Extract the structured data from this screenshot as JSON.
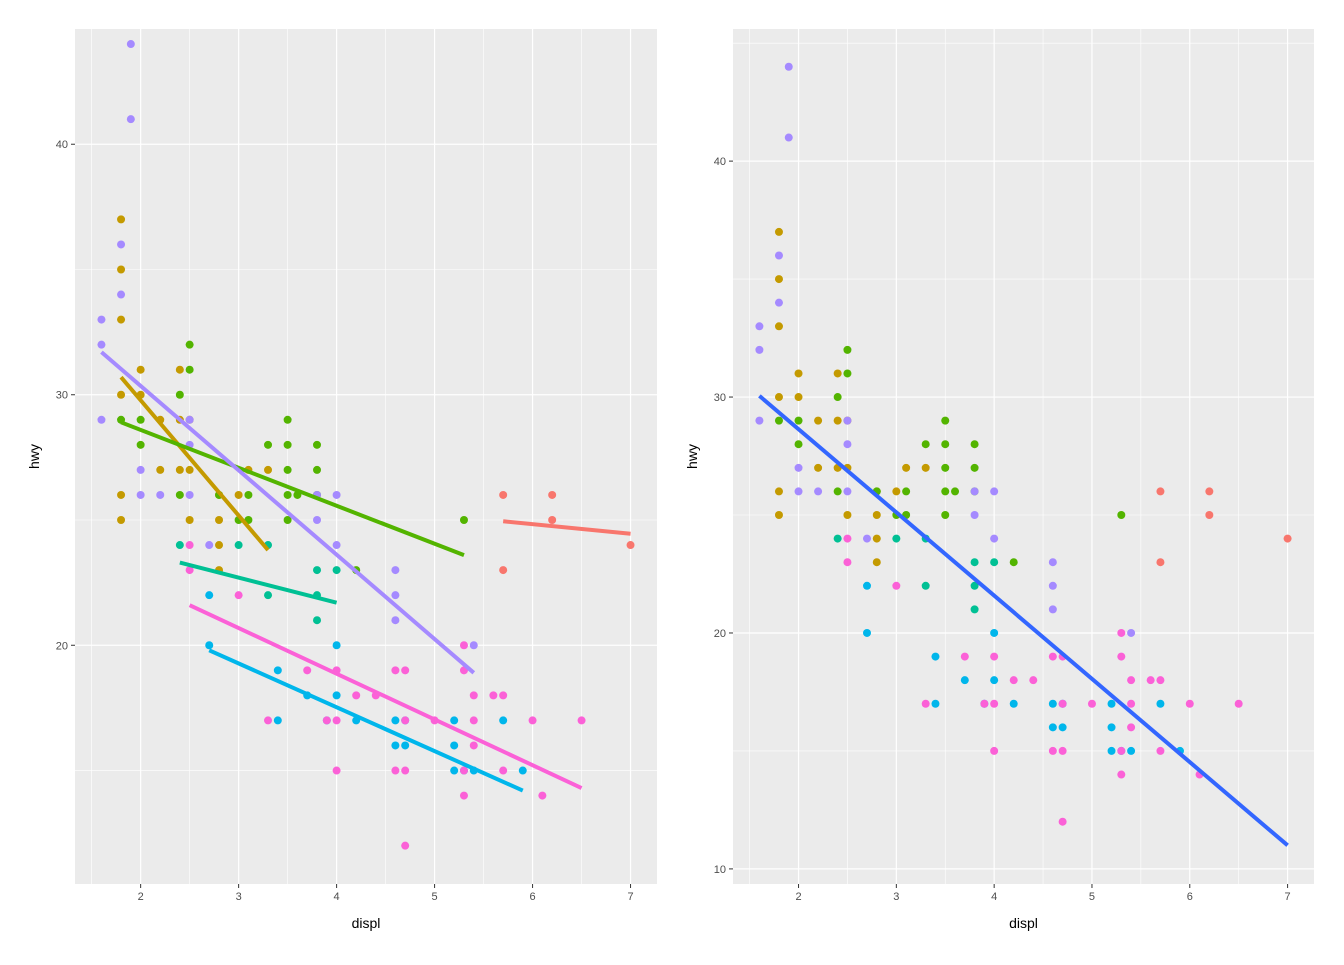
{
  "chart_data": [
    {
      "type": "scatter",
      "title": "",
      "xlabel": "displ",
      "ylabel": "hwy",
      "xlim": [
        1.33,
        7.27
      ],
      "ylim": [
        10.47,
        44.6
      ],
      "xticks": [
        2,
        3,
        4,
        5,
        6,
        7
      ],
      "yticks": [
        20,
        30,
        40
      ],
      "grid": true,
      "smooth": "per-class linear fit",
      "fits": [
        {
          "class": "2seater",
          "x": [
            5.7,
            7.0
          ],
          "y": [
            24.95,
            24.45
          ]
        },
        {
          "class": "compact",
          "x": [
            1.8,
            3.3
          ],
          "y": [
            30.7,
            23.8
          ]
        },
        {
          "class": "midsize",
          "x": [
            1.8,
            5.3
          ],
          "y": [
            28.9,
            23.6
          ]
        },
        {
          "class": "minivan",
          "x": [
            2.4,
            4.0
          ],
          "y": [
            23.3,
            21.7
          ]
        },
        {
          "class": "pickup",
          "x": [
            2.7,
            5.9
          ],
          "y": [
            19.8,
            14.2
          ]
        },
        {
          "class": "subcompact",
          "x": [
            1.6,
            5.4
          ],
          "y": [
            31.7,
            18.9
          ]
        },
        {
          "class": "suv",
          "x": [
            2.5,
            6.5
          ],
          "y": [
            21.6,
            14.3
          ]
        }
      ]
    },
    {
      "type": "scatter",
      "title": "",
      "xlabel": "displ",
      "ylabel": "hwy",
      "xlim": [
        1.33,
        7.27
      ],
      "ylim": [
        9.36,
        45.6
      ],
      "xticks": [
        2,
        3,
        4,
        5,
        6,
        7
      ],
      "yticks": [
        10,
        20,
        30,
        40
      ],
      "grid": true,
      "smooth": "overall linear fit",
      "fits": [
        {
          "class": "all",
          "x": [
            1.6,
            7.0
          ],
          "y": [
            30.05,
            11.0
          ]
        }
      ]
    }
  ],
  "colors": {
    "2seater": "#F8766D",
    "compact": "#C49A00",
    "midsize": "#53B400",
    "minivan": "#00C094",
    "pickup": "#00B6EB",
    "subcompact": "#A58AFF",
    "suv": "#FB61D7",
    "all": "#3366FF"
  },
  "points": {
    "2seater": [
      [
        5.7,
        26
      ],
      [
        5.7,
        23
      ],
      [
        6.2,
        26
      ],
      [
        6.2,
        25
      ],
      [
        7.0,
        24
      ]
    ],
    "compact": [
      [
        1.8,
        37
      ],
      [
        1.8,
        35
      ],
      [
        1.8,
        33
      ],
      [
        1.8,
        30
      ],
      [
        1.8,
        26
      ],
      [
        1.8,
        25
      ],
      [
        2.0,
        31
      ],
      [
        2.0,
        30
      ],
      [
        2.2,
        27
      ],
      [
        2.2,
        29
      ],
      [
        2.4,
        31
      ],
      [
        2.4,
        29
      ],
      [
        2.4,
        27
      ],
      [
        2.5,
        29
      ],
      [
        2.5,
        27
      ],
      [
        2.5,
        25
      ],
      [
        2.8,
        26
      ],
      [
        2.8,
        25
      ],
      [
        2.8,
        24
      ],
      [
        2.8,
        23
      ],
      [
        3.0,
        26
      ],
      [
        3.1,
        27
      ],
      [
        3.3,
        27
      ]
    ],
    "midsize": [
      [
        1.8,
        29
      ],
      [
        2.0,
        29
      ],
      [
        2.0,
        28
      ],
      [
        2.4,
        30
      ],
      [
        2.4,
        26
      ],
      [
        2.5,
        32
      ],
      [
        2.5,
        31
      ],
      [
        2.8,
        26
      ],
      [
        3.0,
        25
      ],
      [
        3.1,
        26
      ],
      [
        3.1,
        25
      ],
      [
        3.3,
        28
      ],
      [
        3.5,
        29
      ],
      [
        3.5,
        28
      ],
      [
        3.5,
        27
      ],
      [
        3.5,
        26
      ],
      [
        3.5,
        25
      ],
      [
        3.6,
        26
      ],
      [
        3.8,
        28
      ],
      [
        3.8,
        27
      ],
      [
        3.8,
        26
      ],
      [
        4.2,
        23
      ],
      [
        5.3,
        25
      ]
    ],
    "minivan": [
      [
        2.4,
        24
      ],
      [
        3.0,
        24
      ],
      [
        3.3,
        24
      ],
      [
        3.3,
        22
      ],
      [
        3.8,
        23
      ],
      [
        3.8,
        22
      ],
      [
        3.8,
        21
      ],
      [
        4.0,
        23
      ]
    ],
    "pickup": [
      [
        2.7,
        22
      ],
      [
        2.7,
        20
      ],
      [
        3.4,
        19
      ],
      [
        3.4,
        17
      ],
      [
        3.7,
        18
      ],
      [
        3.9,
        17
      ],
      [
        4.0,
        20
      ],
      [
        4.0,
        18
      ],
      [
        4.2,
        17
      ],
      [
        4.6,
        17
      ],
      [
        4.6,
        16
      ],
      [
        4.7,
        17
      ],
      [
        4.7,
        16
      ],
      [
        5.2,
        17
      ],
      [
        5.2,
        16
      ],
      [
        5.2,
        15
      ],
      [
        5.3,
        15
      ],
      [
        5.4,
        15
      ],
      [
        5.7,
        17
      ],
      [
        5.9,
        15
      ]
    ],
    "subcompact": [
      [
        1.6,
        33
      ],
      [
        1.6,
        32
      ],
      [
        1.6,
        29
      ],
      [
        1.8,
        36
      ],
      [
        1.8,
        34
      ],
      [
        1.9,
        44
      ],
      [
        1.9,
        41
      ],
      [
        2.0,
        27
      ],
      [
        2.0,
        26
      ],
      [
        2.2,
        26
      ],
      [
        2.5,
        29
      ],
      [
        2.5,
        28
      ],
      [
        2.5,
        26
      ],
      [
        2.7,
        24
      ],
      [
        3.8,
        26
      ],
      [
        3.8,
        25
      ],
      [
        4.0,
        26
      ],
      [
        4.0,
        24
      ],
      [
        4.6,
        23
      ],
      [
        4.6,
        22
      ],
      [
        4.6,
        21
      ],
      [
        5.4,
        20
      ]
    ],
    "suv": [
      [
        2.5,
        24
      ],
      [
        2.5,
        23
      ],
      [
        3.0,
        22
      ],
      [
        3.3,
        17
      ],
      [
        3.7,
        19
      ],
      [
        3.9,
        17
      ],
      [
        4.0,
        19
      ],
      [
        4.0,
        17
      ],
      [
        4.0,
        15
      ],
      [
        4.2,
        18
      ],
      [
        4.4,
        18
      ],
      [
        4.6,
        19
      ],
      [
        4.6,
        15
      ],
      [
        4.7,
        19
      ],
      [
        4.7,
        17
      ],
      [
        4.7,
        15
      ],
      [
        4.7,
        12
      ],
      [
        5.0,
        17
      ],
      [
        5.3,
        20
      ],
      [
        5.3,
        19
      ],
      [
        5.3,
        15
      ],
      [
        5.3,
        14
      ],
      [
        5.4,
        18
      ],
      [
        5.4,
        17
      ],
      [
        5.4,
        16
      ],
      [
        5.6,
        18
      ],
      [
        5.7,
        18
      ],
      [
        5.7,
        15
      ],
      [
        6.0,
        17
      ],
      [
        6.1,
        14
      ],
      [
        6.5,
        17
      ]
    ]
  }
}
